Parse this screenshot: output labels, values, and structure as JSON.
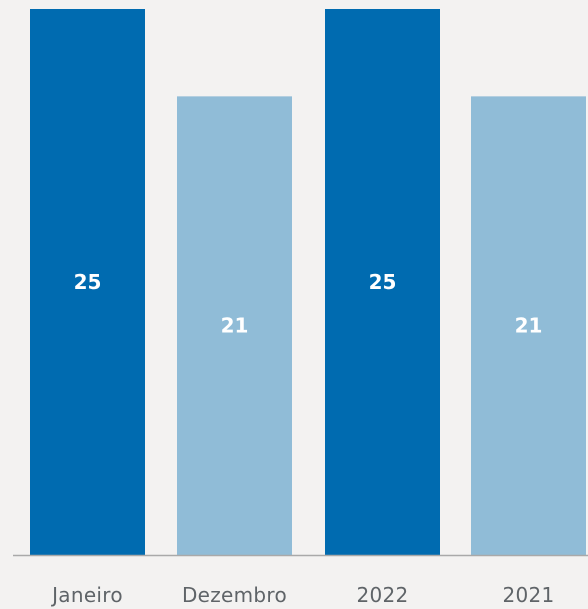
{
  "chart_data": {
    "type": "bar",
    "categories": [
      "Janeiro",
      "Dezembro",
      "2022",
      "2021"
    ],
    "values": [
      25,
      21,
      25,
      21
    ],
    "value_labels": [
      "25",
      "21",
      "25",
      "21"
    ],
    "colors": [
      "#006bb0",
      "#90bcd7",
      "#006bb0",
      "#90bcd7"
    ],
    "baseline_color": "#a9a9a9",
    "ylim": [
      0,
      25
    ],
    "grid": false,
    "title": "",
    "xlabel": "",
    "ylabel": ""
  }
}
